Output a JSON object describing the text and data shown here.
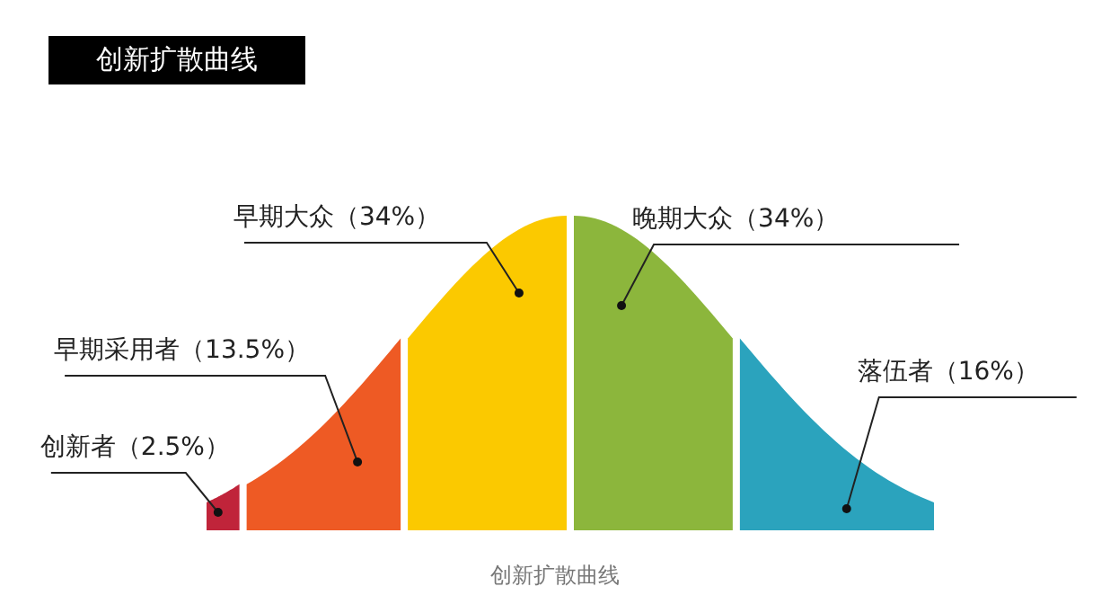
{
  "chart_data": {
    "type": "other",
    "title": "创新扩散曲线",
    "categories": [
      "创新者",
      "早期采用者",
      "早期大众",
      "晚期大众",
      "落伍者"
    ],
    "values": [
      2.5,
      13.5,
      34,
      34,
      16
    ],
    "value_labels": [
      "（2.5%）",
      "（13.5%）",
      "（34%）",
      "（34%）",
      "（16%）"
    ],
    "colors": [
      "#c0243a",
      "#ee5a24",
      "#fbc900",
      "#8cb63c",
      "#2ba3bd"
    ],
    "annotations": [
      "创新扩散曲线"
    ]
  }
}
